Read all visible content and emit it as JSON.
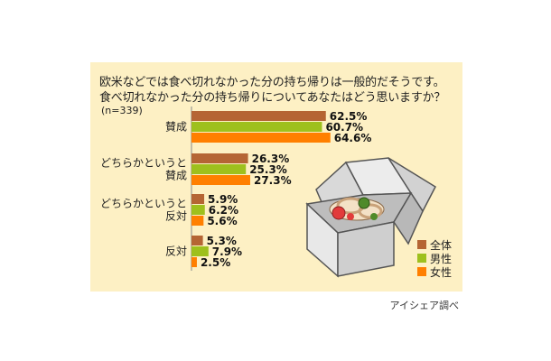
{
  "title_line1": "欧米などでは食べ切れなかった分の持ち帰りは一般的だそうです。",
  "title_line2": "食べ切れなかった分の持ち帰りについてあなたはどう思いますか？",
  "sample_note": "(n=339)",
  "credit": "アイシェア調べ",
  "chart_data": {
    "type": "bar",
    "orientation": "horizontal",
    "categories": [
      [
        "賛成"
      ],
      [
        "どちらかというと",
        "賛成"
      ],
      [
        "どちらかというと",
        "反対"
      ],
      [
        "反対"
      ]
    ],
    "series": [
      {
        "name": "全体",
        "color": "#b56534",
        "values": [
          62.5,
          26.3,
          5.9,
          5.3
        ]
      },
      {
        "name": "男性",
        "color": "#9ec01d",
        "values": [
          60.7,
          25.3,
          6.2,
          7.9
        ]
      },
      {
        "name": "女性",
        "color": "#ff7f00",
        "values": [
          64.6,
          27.3,
          5.6,
          2.5
        ]
      }
    ],
    "value_format": "%",
    "legend_position": "bottom-right",
    "grid": false
  }
}
